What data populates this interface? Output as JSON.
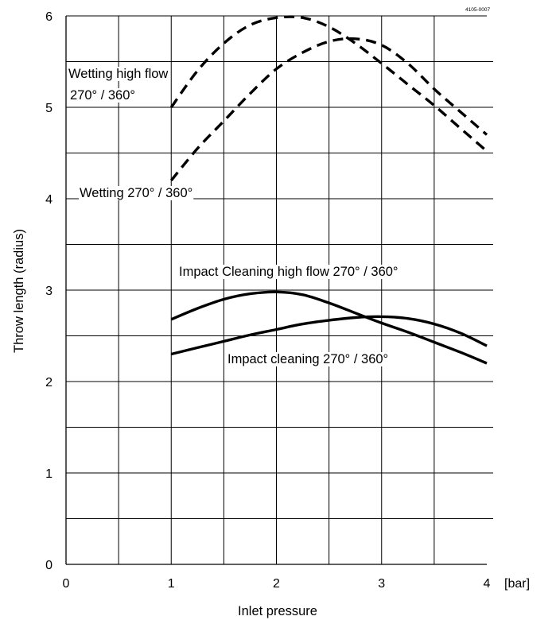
{
  "doc_code": "4105-0007",
  "chart_data": {
    "type": "line",
    "title": "",
    "xlabel": "Inlet pressure",
    "ylabel": "Throw length (radius)",
    "x_unit": "[bar]",
    "xlim": [
      0,
      4
    ],
    "ylim": [
      0,
      6
    ],
    "x_ticks": [
      "0",
      "1",
      "2",
      "3",
      "4"
    ],
    "y_ticks": [
      "0",
      "1",
      "2",
      "3",
      "4",
      "5",
      "6"
    ],
    "grid": true,
    "series": [
      {
        "name": "Wetting high flow 270° / 360°",
        "label_lines": [
          "Wetting high flow",
          "270° / 360°"
        ],
        "style": "dashed",
        "x": [
          1,
          1.25,
          1.5,
          1.75,
          2,
          2.25,
          2.5,
          2.75,
          3,
          3.25,
          3.5,
          3.75,
          4
        ],
        "y": [
          5,
          5.4,
          5.7,
          5.9,
          5.98,
          5.98,
          5.88,
          5.7,
          5.48,
          5.25,
          5.02,
          4.77,
          4.52
        ]
      },
      {
        "name": "Wetting 270° / 360°",
        "label_lines": [
          "Wetting 270° / 360°"
        ],
        "style": "dashed",
        "x": [
          1,
          1.25,
          1.5,
          1.75,
          2,
          2.25,
          2.5,
          2.75,
          3,
          3.25,
          3.5,
          3.75,
          4
        ],
        "y": [
          4.2,
          4.55,
          4.85,
          5.15,
          5.42,
          5.6,
          5.72,
          5.75,
          5.68,
          5.48,
          5.2,
          4.95,
          4.7
        ]
      },
      {
        "name": "Impact Cleaning high flow 270° / 360°",
        "label_lines": [
          "Impact Cleaning high flow 270° / 360°"
        ],
        "style": "solid",
        "x": [
          1,
          1.25,
          1.5,
          1.75,
          2,
          2.25,
          2.5,
          2.75,
          3,
          3.25,
          3.5,
          3.75,
          4
        ],
        "y": [
          2.68,
          2.8,
          2.9,
          2.96,
          2.98,
          2.95,
          2.86,
          2.75,
          2.64,
          2.54,
          2.43,
          2.32,
          2.2
        ]
      },
      {
        "name": "Impact cleaning 270° / 360°",
        "label_lines": [
          "Impact cleaning 270° / 360°"
        ],
        "style": "solid",
        "x": [
          1,
          1.25,
          1.5,
          1.75,
          2,
          2.25,
          2.5,
          2.75,
          3,
          3.25,
          3.5,
          3.75,
          4
        ],
        "y": [
          2.3,
          2.37,
          2.44,
          2.51,
          2.57,
          2.63,
          2.67,
          2.7,
          2.71,
          2.69,
          2.63,
          2.53,
          2.39
        ]
      }
    ]
  }
}
